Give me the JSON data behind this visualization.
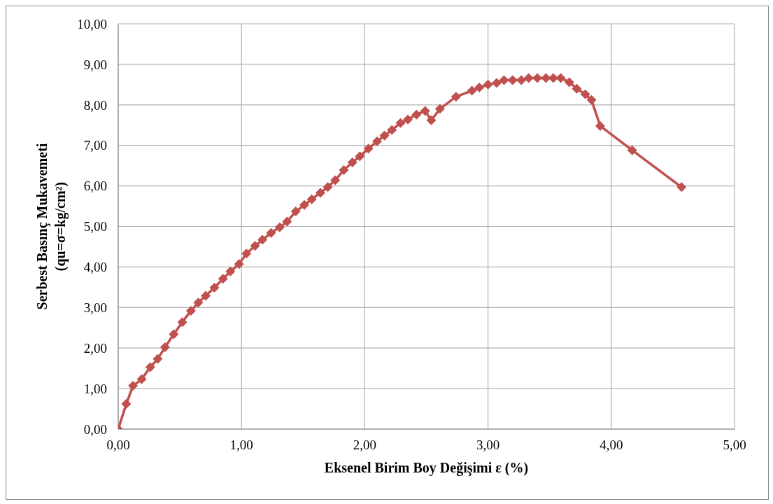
{
  "chart_data": {
    "type": "line",
    "xlabel": "Eksenel Birim Boy Değişimi ε (%)",
    "ylabel": "Serbest Basınç Mukavemeti\n(qu=σ=kg/cm²)",
    "x": [
      0,
      0.065,
      0.12,
      0.19,
      0.26,
      0.32,
      0.38,
      0.45,
      0.52,
      0.59,
      0.65,
      0.71,
      0.78,
      0.85,
      0.91,
      0.98,
      1.04,
      1.11,
      1.17,
      1.24,
      1.31,
      1.37,
      1.44,
      1.51,
      1.57,
      1.64,
      1.7,
      1.76,
      1.83,
      1.9,
      1.96,
      2.03,
      2.1,
      2.16,
      2.22,
      2.29,
      2.35,
      2.42,
      2.49,
      2.54,
      2.61,
      2.74,
      2.87,
      2.93,
      3.0,
      3.07,
      3.13,
      3.2,
      3.27,
      3.33,
      3.4,
      3.47,
      3.53,
      3.59,
      3.66,
      3.72,
      3.79,
      3.84,
      3.91,
      4.17,
      4.57
    ],
    "series": [
      {
        "color": "#c0504d",
        "values": [
          0,
          0.62,
          1.07,
          1.23,
          1.53,
          1.73,
          2.02,
          2.34,
          2.64,
          2.92,
          3.12,
          3.29,
          3.49,
          3.71,
          3.89,
          4.07,
          4.33,
          4.52,
          4.67,
          4.84,
          4.98,
          5.12,
          5.37,
          5.53,
          5.67,
          5.83,
          5.97,
          6.14,
          6.39,
          6.58,
          6.73,
          6.92,
          7.1,
          7.24,
          7.38,
          7.55,
          7.64,
          7.76,
          7.85,
          7.62,
          7.9,
          8.2,
          8.35,
          8.43,
          8.5,
          8.54,
          8.61,
          8.61,
          8.61,
          8.66,
          8.66,
          8.66,
          8.66,
          8.66,
          8.56,
          8.4,
          8.26,
          8.12,
          7.48,
          6.88,
          5.97
        ]
      }
    ],
    "xlim": [
      0,
      5
    ],
    "xticks": [
      {
        "value": 0,
        "label": "0,00"
      },
      {
        "value": 1,
        "label": "1,00"
      },
      {
        "value": 2,
        "label": "2,00"
      },
      {
        "value": 3,
        "label": "3,00"
      },
      {
        "value": 4,
        "label": "4,00"
      },
      {
        "value": 5,
        "label": "5,00"
      }
    ],
    "ylim": [
      0,
      10
    ],
    "yticks": [
      {
        "value": 0,
        "label": "0,00"
      },
      {
        "value": 1,
        "label": "1,00"
      },
      {
        "value": 2,
        "label": "2,00"
      },
      {
        "value": 3,
        "label": "3,00"
      },
      {
        "value": 4,
        "label": "4,00"
      },
      {
        "value": 5,
        "label": "5,00"
      },
      {
        "value": 6,
        "label": "6,00"
      },
      {
        "value": 7,
        "label": "7,00"
      },
      {
        "value": 8,
        "label": "8,00"
      },
      {
        "value": 9,
        "label": "9,00"
      },
      {
        "value": 10,
        "label": "10,00"
      }
    ],
    "grid": true,
    "legend": false,
    "marker": "diamond",
    "line_style": "solid"
  }
}
